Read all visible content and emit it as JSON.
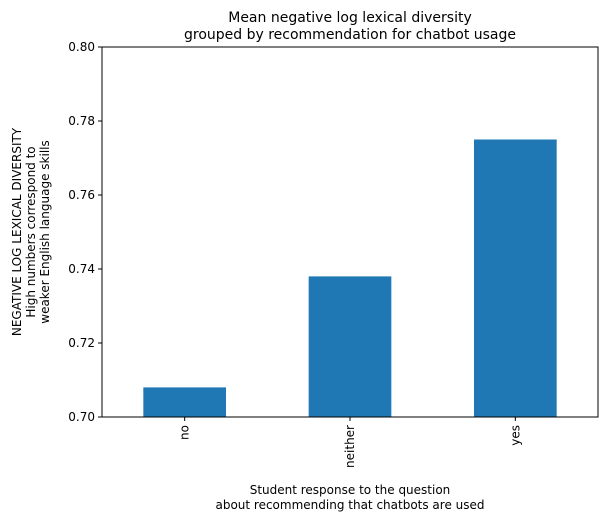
{
  "chart_data": {
    "type": "bar",
    "title": [
      "Mean negative log lexical diversity",
      "grouped by recommendation for chatbot usage"
    ],
    "xlabel": [
      "Student response to the question",
      "about recommending that chatbots are used"
    ],
    "ylabel": [
      "NEGATIVE LOG LEXICAL DIVERSITY",
      "High numbers correspond to",
      "weaker English language skills"
    ],
    "categories": [
      "no",
      "neither",
      "yes"
    ],
    "values": [
      0.708,
      0.738,
      0.775
    ],
    "ylim": [
      0.7,
      0.8
    ],
    "yticks": [
      "0.70",
      "0.72",
      "0.74",
      "0.76",
      "0.78",
      "0.80"
    ],
    "bar_color": "#1f77b4",
    "grid": false,
    "legend": "none"
  }
}
